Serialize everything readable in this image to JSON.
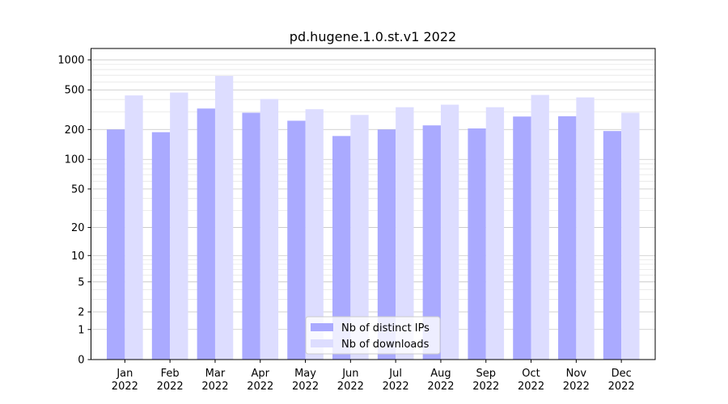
{
  "chart_data": {
    "type": "bar",
    "title": "pd.hugene.1.0.st.v1 2022",
    "categories": [
      "Jan\n2022",
      "Feb\n2022",
      "Mar\n2022",
      "Apr\n2022",
      "May\n2022",
      "Jun\n2022",
      "Jul\n2022",
      "Aug\n2022",
      "Sep\n2022",
      "Oct\n2022",
      "Nov\n2022",
      "Dec\n2022"
    ],
    "series": [
      {
        "name": "Nb of distinct IPs",
        "color": "#aaaaff",
        "values": [
          200,
          188,
          325,
          295,
          245,
          172,
          200,
          220,
          205,
          270,
          272,
          193
        ]
      },
      {
        "name": "Nb of downloads",
        "color": "#ddddff",
        "values": [
          440,
          470,
          690,
          405,
          320,
          280,
          335,
          355,
          335,
          445,
          420,
          295
        ]
      }
    ],
    "y_ticks": [
      0,
      1,
      2,
      5,
      10,
      20,
      50,
      100,
      200,
      500,
      1000
    ],
    "y_scale": "symlog",
    "ylim": [
      0,
      1300
    ],
    "legend_placement": "lower center",
    "grid": true
  }
}
